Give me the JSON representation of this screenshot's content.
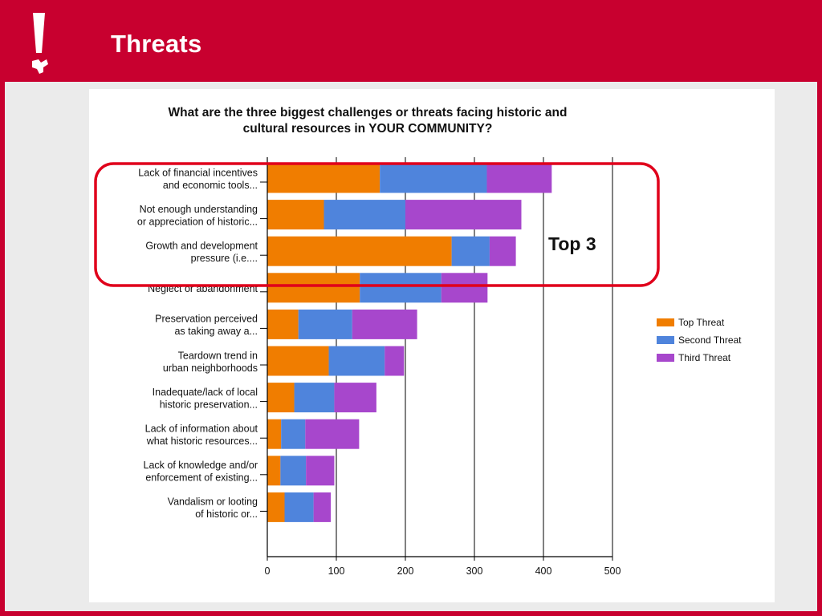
{
  "slide": {
    "title": "Threats",
    "logo_icon": "exclamation-texas-icon",
    "colors": {
      "brand": "#c8002f",
      "background": "#ebebeb"
    }
  },
  "callout": {
    "label": "Top 3",
    "color": "#e0001b"
  },
  "chart_data": {
    "type": "bar",
    "orientation": "horizontal",
    "stacked": true,
    "title": "What are the three biggest challenges or threats facing historic and cultural resources in YOUR COMMUNITY?",
    "title_lines": [
      "What are the three biggest challenges or threats facing historic and",
      "cultural resources in YOUR COMMUNITY?"
    ],
    "xlabel": "",
    "ylabel": "",
    "xlim": [
      0,
      500
    ],
    "xticks": [
      0,
      100,
      200,
      300,
      400,
      500
    ],
    "grid": true,
    "legend_position": "right",
    "categories": [
      [
        "Lack of financial incentives",
        "and economic tools..."
      ],
      [
        "Not enough understanding",
        "or appreciation of historic..."
      ],
      [
        "Growth and development",
        "pressure (i.e...."
      ],
      [
        "Neglect or abandonment"
      ],
      [
        "Preservation perceived",
        "as taking away a..."
      ],
      [
        "Teardown trend in",
        "urban neighborhoods"
      ],
      [
        "Inadequate/lack of local",
        "historic preservation..."
      ],
      [
        "Lack of information about",
        "what historic resources..."
      ],
      [
        "Lack of knowledge and/or",
        "enforcement of existing..."
      ],
      [
        "Vandalism or looting",
        "of historic or..."
      ]
    ],
    "series": [
      {
        "name": "Top Threat",
        "color": "#f07d00",
        "values": [
          163,
          82,
          267,
          134,
          45,
          89,
          39,
          20,
          19,
          25
        ]
      },
      {
        "name": "Second Threat",
        "color": "#4f84dc",
        "values": [
          155,
          118,
          55,
          118,
          78,
          81,
          58,
          35,
          37,
          42
        ]
      },
      {
        "name": "Third Threat",
        "color": "#a747cc",
        "values": [
          94,
          168,
          38,
          67,
          94,
          28,
          61,
          78,
          41,
          25
        ]
      }
    ]
  }
}
